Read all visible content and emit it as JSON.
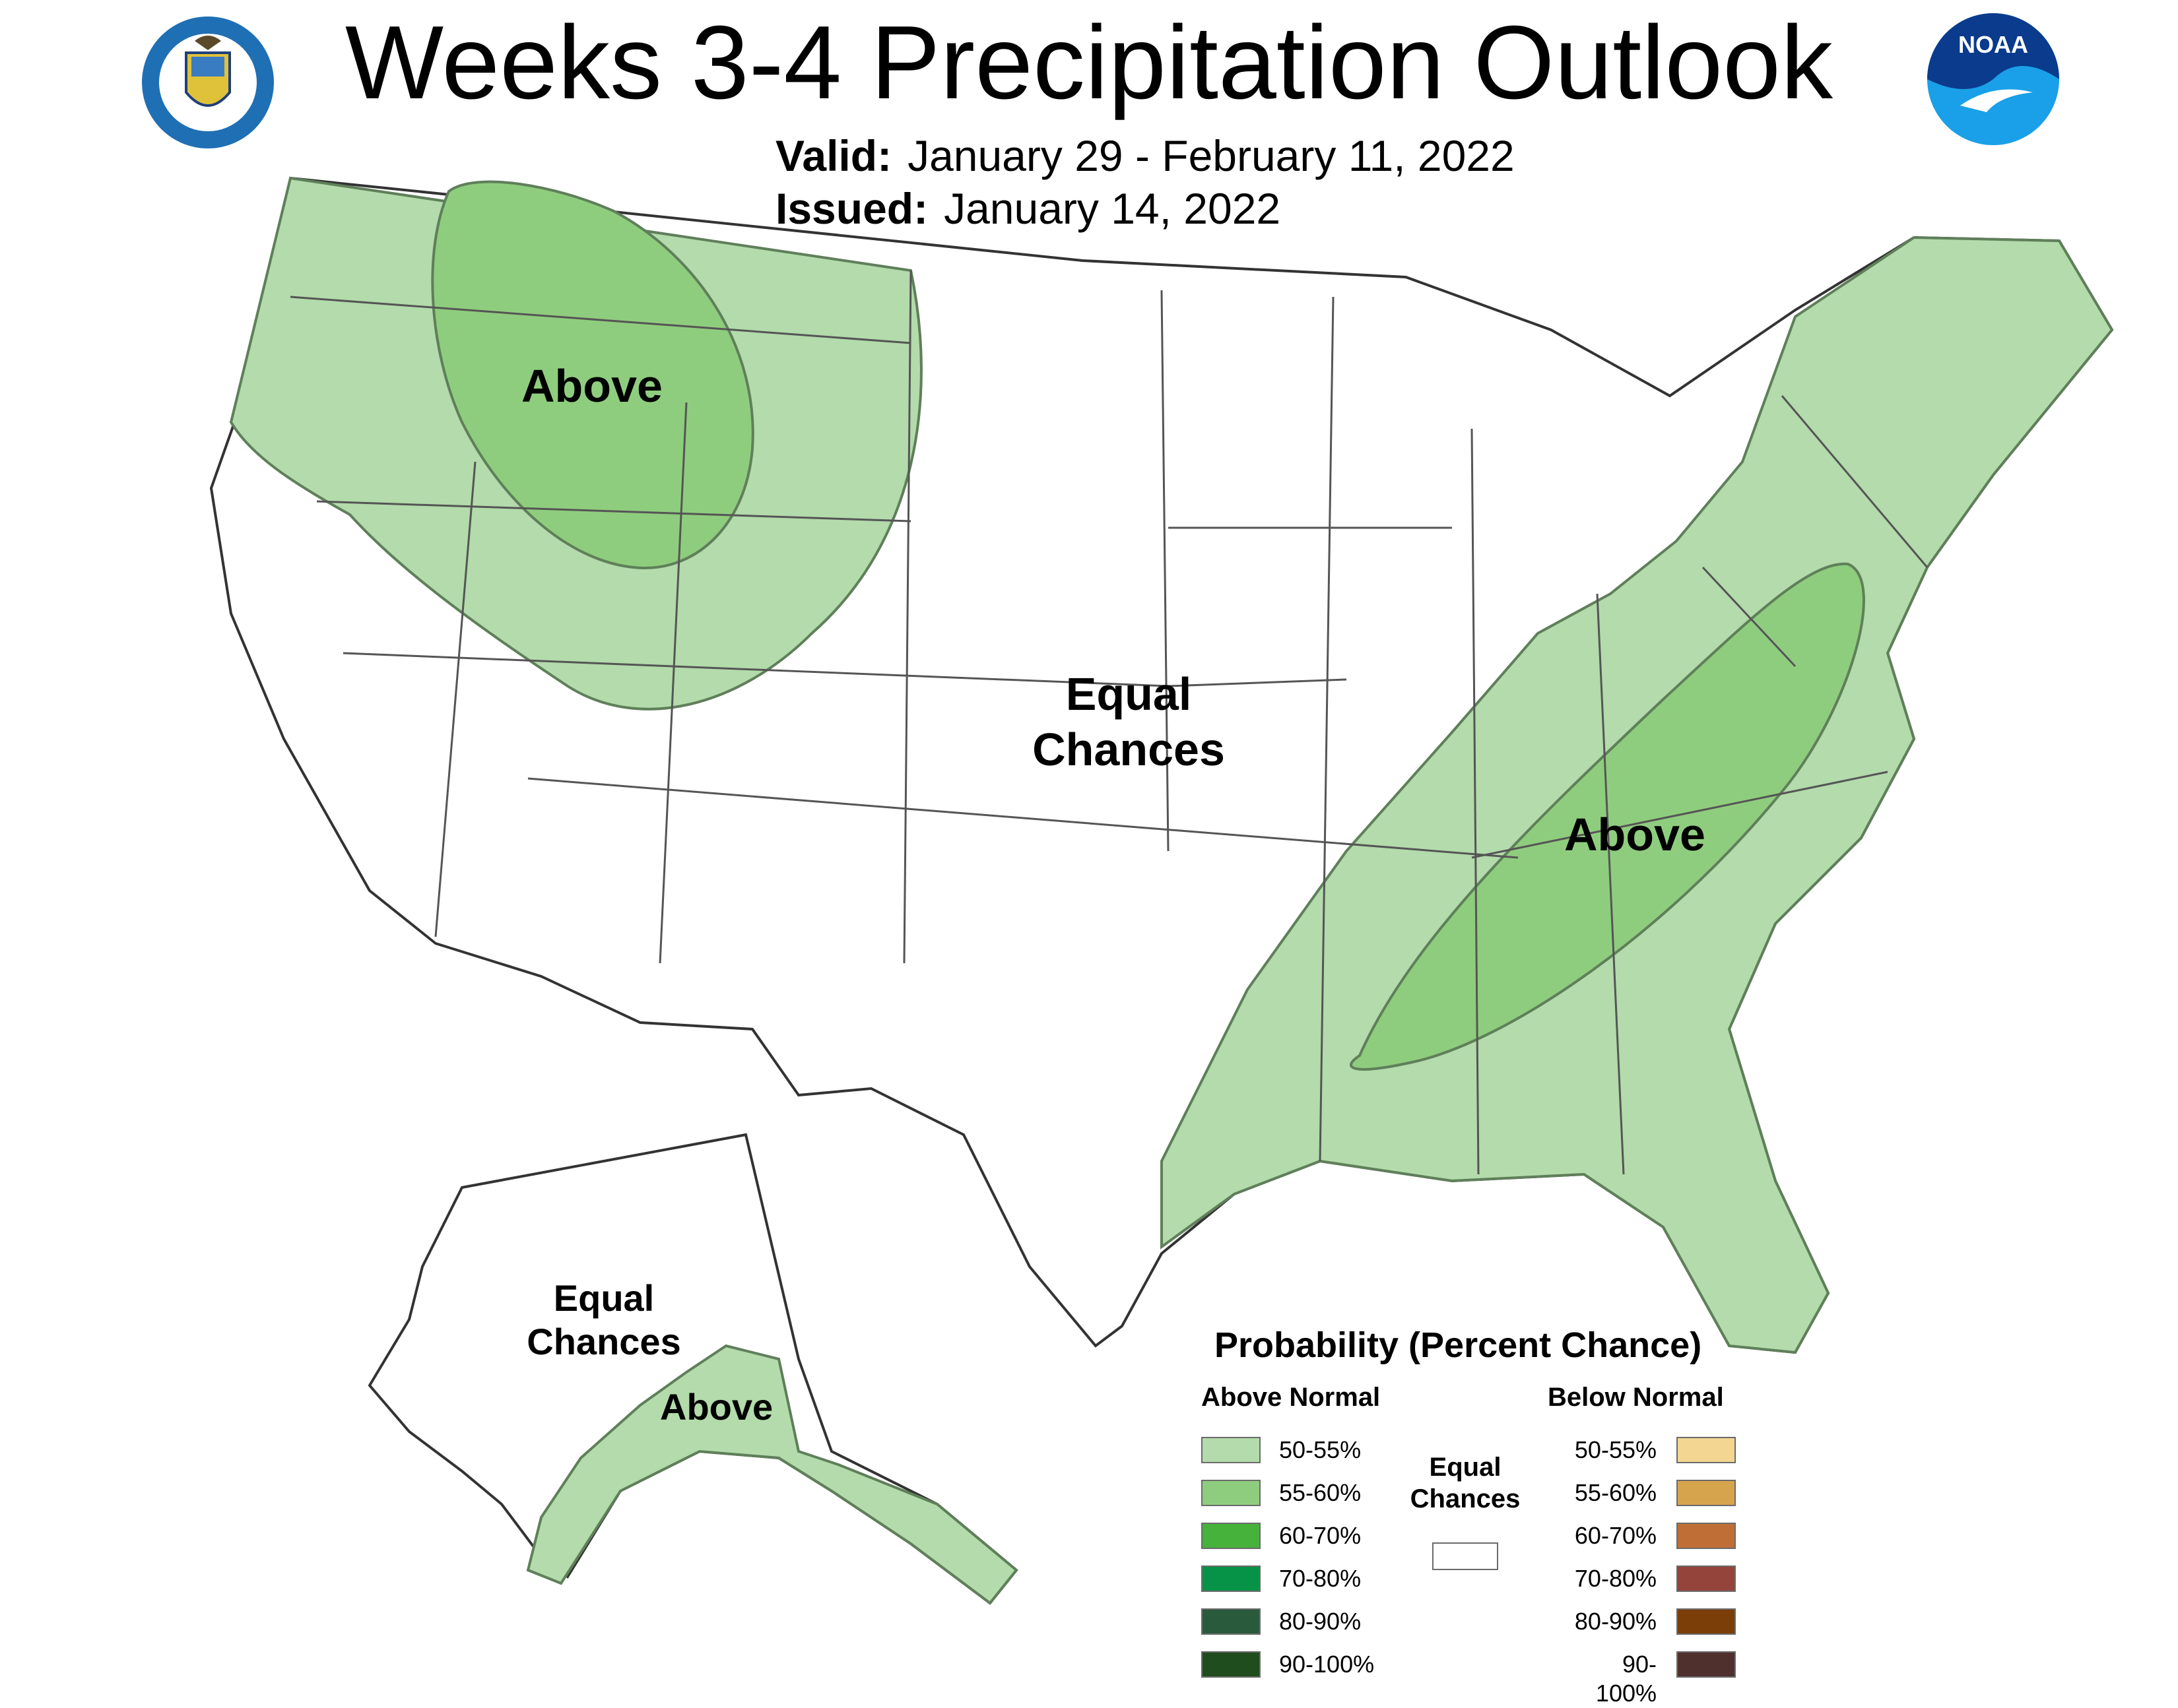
{
  "header": {
    "title": "Weeks 3-4 Precipitation Outlook",
    "valid_label": "Valid:",
    "valid_value": "January 29 - February 11, 2022",
    "issued_label": "Issued:",
    "issued_value": "January 14, 2022"
  },
  "logos": {
    "commerce_seal": "DEPARTMENT OF COMMERCE · UNITED STATES OF AMERICA",
    "noaa": "NOAA"
  },
  "colors": {
    "above_50_55": "#b3dbab",
    "above_55_60": "#8fcd7e",
    "region_outline": "#5f7f5a",
    "state_line": "#555555"
  },
  "map_labels": {
    "west_above": "Above",
    "center_equal_line1": "Equal",
    "center_equal_line2": "Chances",
    "east_above": "Above",
    "alaska_equal_line1": "Equal",
    "alaska_equal_line2": "Chances",
    "alaska_above": "Above"
  },
  "legend": {
    "title": "Probability (Percent Chance)",
    "above_header": "Above Normal",
    "below_header": "Below Normal",
    "equal_line1": "Equal",
    "equal_line2": "Chances",
    "above": [
      {
        "label": "50-55%",
        "color": "#b3dbab"
      },
      {
        "label": "55-60%",
        "color": "#8fcd7e"
      },
      {
        "label": "60-70%",
        "color": "#46b23c"
      },
      {
        "label": "70-80%",
        "color": "#079347"
      },
      {
        "label": "80-90%",
        "color": "#2a5a3c"
      },
      {
        "label": "90-100%",
        "color": "#1f4d1e"
      }
    ],
    "below": [
      {
        "label": "50-55%",
        "color": "#f2d691"
      },
      {
        "label": "55-60%",
        "color": "#d7a44e"
      },
      {
        "label": "60-70%",
        "color": "#bf6f35"
      },
      {
        "label": "70-80%",
        "color": "#94443a"
      },
      {
        "label": "80-90%",
        "color": "#7b3e08"
      },
      {
        "label": "90-100%",
        "color": "#50302c"
      }
    ]
  }
}
